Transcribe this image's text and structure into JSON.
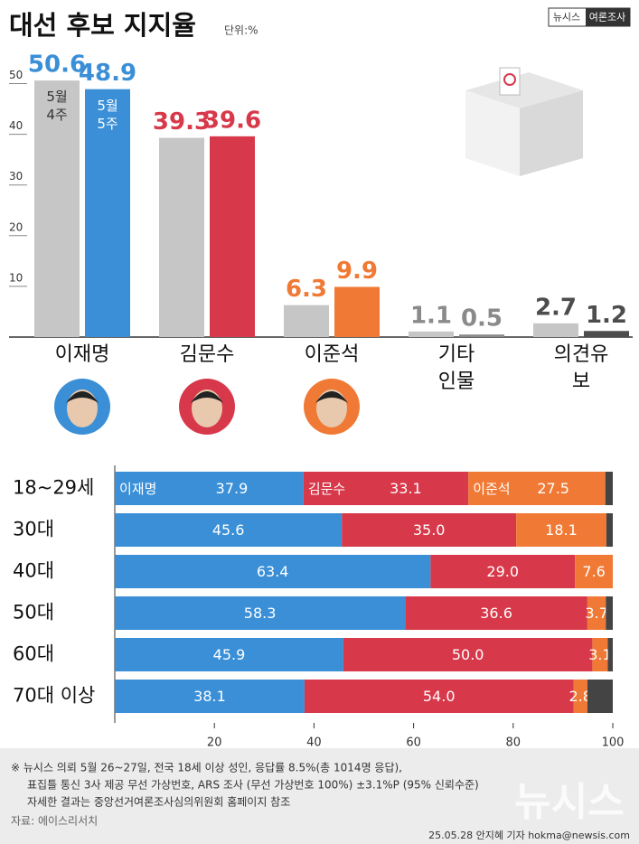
{
  "header": {
    "title": "대선 후보 지지율",
    "unit": "단위:%",
    "brand": "뉴시스",
    "brand_tag": "여론조사"
  },
  "chart_data": [
    {
      "type": "bar",
      "categories": [
        "이재명",
        "김문수",
        "이준석",
        "기타\n인물",
        "의견유보"
      ],
      "colors": [
        "#3a8fd7",
        "#d7384a",
        "#f07a35",
        "#8a8a8a",
        "#4d4d4d"
      ],
      "series": [
        {
          "name": "5월\n4주",
          "color": "#c6c6c6",
          "values": [
            50.6,
            39.3,
            6.3,
            1.1,
            2.7
          ]
        },
        {
          "name": "5월\n5주",
          "values": [
            48.9,
            39.6,
            9.9,
            0.5,
            1.2
          ]
        }
      ],
      "ylim": [
        0,
        56
      ],
      "yticks": [
        10,
        20,
        30,
        40,
        50
      ]
    },
    {
      "type": "stacked_barh",
      "categories": [
        "18~29세",
        "30대",
        "40대",
        "50대",
        "60대",
        "70대 이상"
      ],
      "series": [
        {
          "name": "이재명",
          "color": "#3a8fd7",
          "values": [
            37.9,
            45.6,
            63.4,
            58.3,
            45.9,
            38.1
          ]
        },
        {
          "name": "김문수",
          "color": "#d7384a",
          "values": [
            33.1,
            35.0,
            29.0,
            36.6,
            50.0,
            54.0
          ],
          "value_labels": [
            "33.1",
            "35.0",
            "29.0",
            "36.6",
            "50.0",
            "54.0"
          ]
        },
        {
          "name": "이준석",
          "color": "#f07a35",
          "values": [
            27.5,
            18.1,
            7.6,
            3.7,
            3.1,
            2.8
          ]
        },
        {
          "color": "#444444",
          "values": [
            1.5,
            1.3,
            0,
            1.4,
            1.0,
            5.1
          ]
        }
      ],
      "xlim": [
        0,
        100
      ],
      "xticks": [
        20,
        40,
        60,
        80,
        100
      ]
    }
  ],
  "footer": {
    "notes": [
      "※ 뉴시스 의뢰 5월 26~27일, 전국 18세 이상 성인, 응답률 8.5%(총 1014명 응답),",
      "표집틀 통신 3사 제공 무선 가상번호, ARS 조사 (무선 가상번호 100%) ±3.1%P (95% 신뢰수준)",
      "자세한 결과는 중앙선거여론조사심의위원회 홈페이지 참조"
    ],
    "source": "자료: 에이스리서치",
    "credit": "25.05.28 안지혜 기자 hokma@newsis.com",
    "watermark": "뉴시스"
  }
}
